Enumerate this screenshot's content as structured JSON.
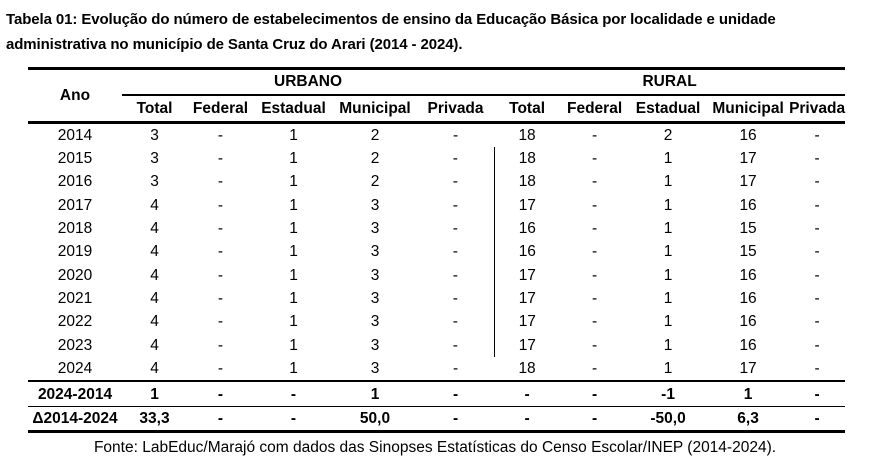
{
  "title": {
    "line1": "Tabela 01: Evolução do número de estabelecimentos de ensino da Educação Básica por localidade e unidade",
    "line2": "administrativa no município de Santa Cruz do Arari (2014 - 2024)."
  },
  "table": {
    "year_header": "Ano",
    "groups": [
      {
        "label": "URBANO"
      },
      {
        "label": "RURAL"
      }
    ],
    "sub_headers": [
      "Total",
      "Federal",
      "Estadual",
      "Municipal",
      "Privada"
    ],
    "rows": [
      {
        "year": "2014",
        "urbano": [
          "3",
          "-",
          "1",
          "2",
          "-"
        ],
        "rural": [
          "18",
          "-",
          "2",
          "16",
          "-"
        ]
      },
      {
        "year": "2015",
        "urbano": [
          "3",
          "-",
          "1",
          "2",
          "-"
        ],
        "rural": [
          "18",
          "-",
          "1",
          "17",
          "-"
        ]
      },
      {
        "year": "2016",
        "urbano": [
          "3",
          "-",
          "1",
          "2",
          "-"
        ],
        "rural": [
          "18",
          "-",
          "1",
          "17",
          "-"
        ]
      },
      {
        "year": "2017",
        "urbano": [
          "4",
          "-",
          "1",
          "3",
          "-"
        ],
        "rural": [
          "17",
          "-",
          "1",
          "16",
          "-"
        ]
      },
      {
        "year": "2018",
        "urbano": [
          "4",
          "-",
          "1",
          "3",
          "-"
        ],
        "rural": [
          "16",
          "-",
          "1",
          "15",
          "-"
        ]
      },
      {
        "year": "2019",
        "urbano": [
          "4",
          "-",
          "1",
          "3",
          "-"
        ],
        "rural": [
          "16",
          "-",
          "1",
          "15",
          "-"
        ]
      },
      {
        "year": "2020",
        "urbano": [
          "4",
          "-",
          "1",
          "3",
          "-"
        ],
        "rural": [
          "17",
          "-",
          "1",
          "16",
          "-"
        ]
      },
      {
        "year": "2021",
        "urbano": [
          "4",
          "-",
          "1",
          "3",
          "-"
        ],
        "rural": [
          "17",
          "-",
          "1",
          "16",
          "-"
        ]
      },
      {
        "year": "2022",
        "urbano": [
          "4",
          "-",
          "1",
          "3",
          "-"
        ],
        "rural": [
          "17",
          "-",
          "1",
          "16",
          "-"
        ]
      },
      {
        "year": "2023",
        "urbano": [
          "4",
          "-",
          "1",
          "3",
          "-"
        ],
        "rural": [
          "17",
          "-",
          "1",
          "16",
          "-"
        ]
      },
      {
        "year": "2024",
        "urbano": [
          "4",
          "-",
          "1",
          "3",
          "-"
        ],
        "rural": [
          "18",
          "-",
          "1",
          "17",
          "-"
        ]
      }
    ],
    "summary_rows": [
      {
        "label": "2024-2014",
        "urbano": [
          "1",
          "-",
          "-",
          "1",
          "-"
        ],
        "rural": [
          "-",
          "-",
          "-1",
          "1",
          "-"
        ]
      },
      {
        "label": "Δ2014-2024",
        "urbano": [
          "33,3",
          "-",
          "-",
          "50,0",
          "-"
        ],
        "rural": [
          "-",
          "-",
          "-50,0",
          "6,3",
          "-"
        ]
      }
    ],
    "vline_rows_start": 1,
    "vline_rows_end": 9
  },
  "footer": "Fonte: LabEduc/Marajó com dados das Sinopses Estatísticas do Censo Escolar/INEP (2014-2024).",
  "colors": {
    "text": "#000000",
    "background": "#ffffff",
    "rule": "#000000"
  }
}
